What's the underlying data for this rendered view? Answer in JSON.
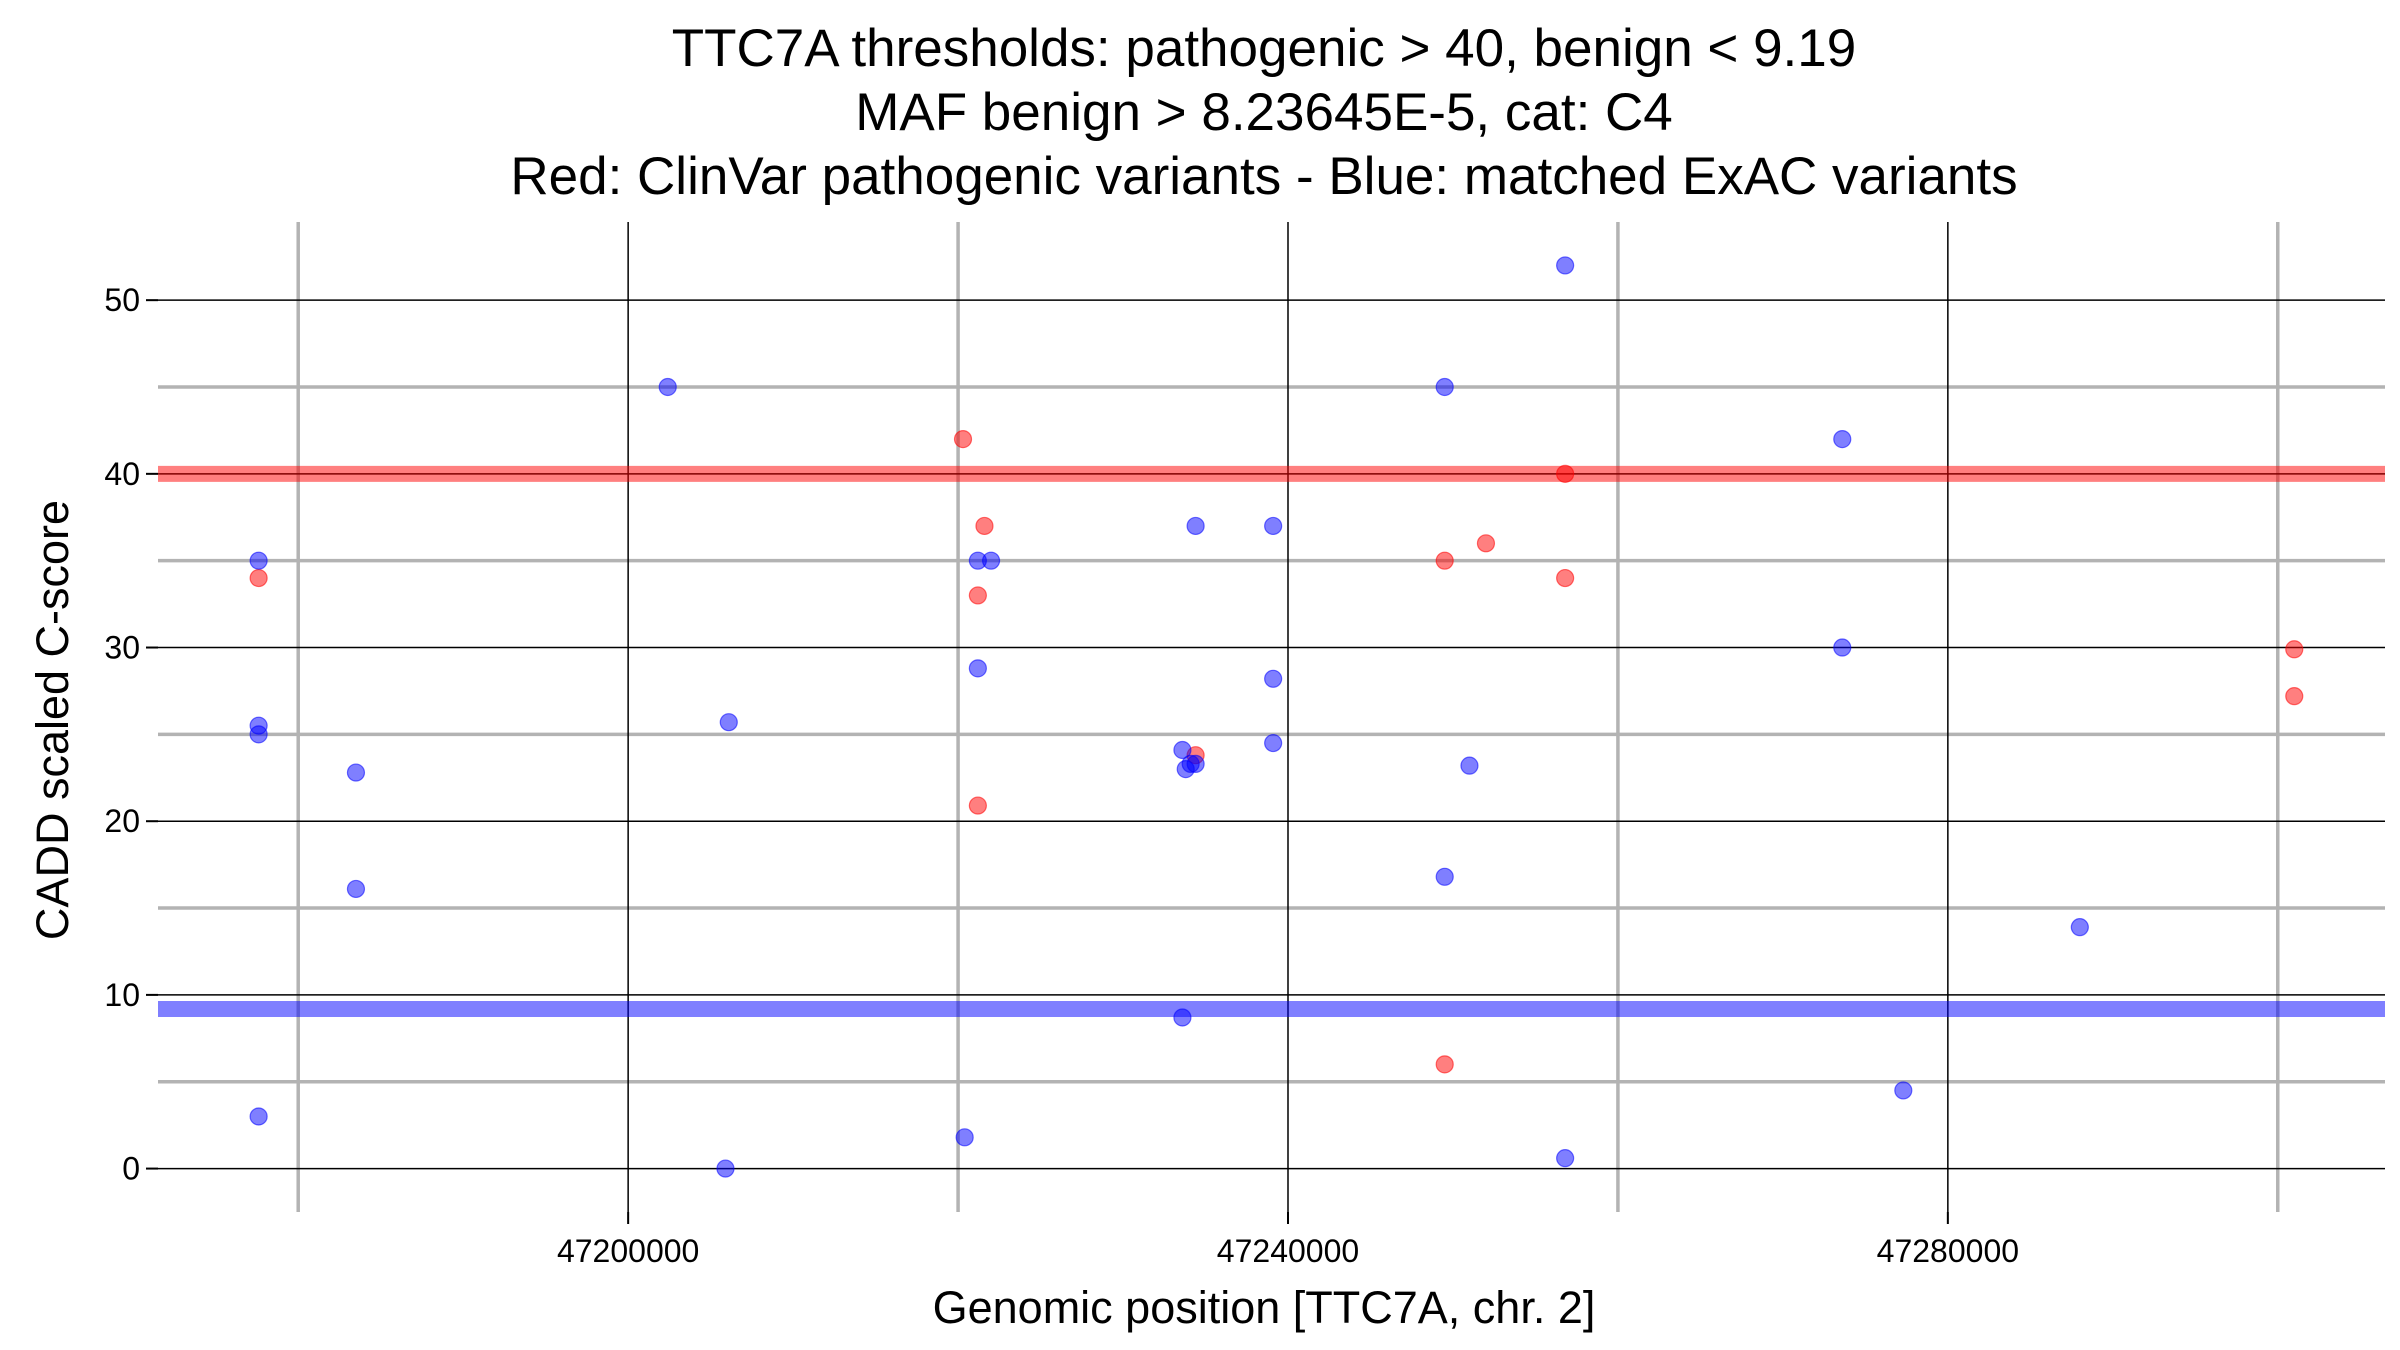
{
  "chart_data": {
    "type": "scatter",
    "title": [
      "TTC7A thresholds: pathogenic > 40, benign < 9.19",
      "MAF benign > 8.23645E-5, cat: C4",
      "Red: ClinVar pathogenic variants - Blue: matched ExAC variants"
    ],
    "xlabel": "Genomic position [TTC7A, chr. 2]",
    "ylabel": "CADD scaled C-score",
    "xlim": [
      47171500,
      47306500
    ],
    "ylim": [
      -2.5,
      54.5
    ],
    "x_ticks": [
      {
        "value": 47200000,
        "label": "47200000"
      },
      {
        "value": 47240000,
        "label": "47240000"
      },
      {
        "value": 47280000,
        "label": "47280000"
      }
    ],
    "y_ticks": [
      {
        "value": 0,
        "label": "0"
      },
      {
        "value": 10,
        "label": "10"
      },
      {
        "value": 20,
        "label": "20"
      },
      {
        "value": 30,
        "label": "30"
      },
      {
        "value": 40,
        "label": "40"
      },
      {
        "value": 50,
        "label": "50"
      }
    ],
    "x_major_gridlines": [
      47200000,
      47240000,
      47280000
    ],
    "x_minor_gridlines": [
      47180000,
      47220000,
      47260000,
      47300000
    ],
    "y_major_gridlines": [
      0,
      10,
      20,
      30,
      40,
      50
    ],
    "y_minor_gridlines": [
      5,
      15,
      25,
      35,
      45
    ],
    "thresholds": [
      {
        "name": "pathogenic",
        "value": 40,
        "color": "#ff0000"
      },
      {
        "name": "benign",
        "value": 9.19,
        "color": "#0000ff"
      }
    ],
    "legend": "none",
    "grid": true,
    "series": [
      {
        "color": "#ff0000",
        "points": [
          {
            "x": 47177600,
            "y": 34
          },
          {
            "x": 47220300,
            "y": 42
          },
          {
            "x": 47221200,
            "y": 33
          },
          {
            "x": 47221600,
            "y": 37
          },
          {
            "x": 47221200,
            "y": 20.9
          },
          {
            "x": 47234400,
            "y": 23.8
          },
          {
            "x": 47249500,
            "y": 35
          },
          {
            "x": 47252000,
            "y": 36
          },
          {
            "x": 47256800,
            "y": 40
          },
          {
            "x": 47256800,
            "y": 34
          },
          {
            "x": 47249500,
            "y": 6
          },
          {
            "x": 47301000,
            "y": 29.9
          },
          {
            "x": 47301000,
            "y": 27.2
          }
        ]
      },
      {
        "color": "#0000ff",
        "points": [
          {
            "x": 47177600,
            "y": 35
          },
          {
            "x": 47177600,
            "y": 25.5
          },
          {
            "x": 47177600,
            "y": 25
          },
          {
            "x": 47177600,
            "y": 3
          },
          {
            "x": 47183500,
            "y": 22.8
          },
          {
            "x": 47183500,
            "y": 16.1
          },
          {
            "x": 47202400,
            "y": 45
          },
          {
            "x": 47206100,
            "y": 25.7
          },
          {
            "x": 47205900,
            "y": 0
          },
          {
            "x": 47220400,
            "y": 1.8
          },
          {
            "x": 47221200,
            "y": 35
          },
          {
            "x": 47222000,
            "y": 35
          },
          {
            "x": 47221200,
            "y": 28.8
          },
          {
            "x": 47233600,
            "y": 24.1
          },
          {
            "x": 47233800,
            "y": 23
          },
          {
            "x": 47234100,
            "y": 23.3
          },
          {
            "x": 47234400,
            "y": 23.3
          },
          {
            "x": 47234400,
            "y": 37
          },
          {
            "x": 47233600,
            "y": 8.7
          },
          {
            "x": 47239100,
            "y": 37
          },
          {
            "x": 47239100,
            "y": 28.2
          },
          {
            "x": 47239100,
            "y": 24.5
          },
          {
            "x": 47249500,
            "y": 45
          },
          {
            "x": 47251000,
            "y": 23.2
          },
          {
            "x": 47249500,
            "y": 16.8
          },
          {
            "x": 47256800,
            "y": 52
          },
          {
            "x": 47256800,
            "y": 0.6
          },
          {
            "x": 47273600,
            "y": 42
          },
          {
            "x": 47273600,
            "y": 30
          },
          {
            "x": 47277300,
            "y": 4.5
          },
          {
            "x": 47288000,
            "y": 13.9
          }
        ]
      }
    ]
  }
}
